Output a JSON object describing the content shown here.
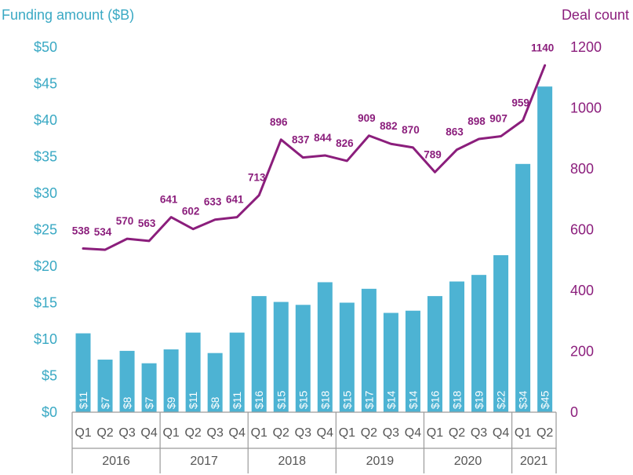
{
  "chart_data": {
    "type": "bar+line",
    "left_axis_title": "Funding amount ($B)",
    "right_axis_title": "Deal count",
    "left_ticks": [
      "$0",
      "$5",
      "$10",
      "$15",
      "$20",
      "$25",
      "$30",
      "$35",
      "$40",
      "$45",
      "$50"
    ],
    "right_ticks": [
      "0",
      "200",
      "400",
      "600",
      "800",
      "1000",
      "1200"
    ],
    "left_ylim": [
      0,
      50
    ],
    "right_ylim": [
      0,
      1200
    ],
    "quarters": [
      "Q1",
      "Q2",
      "Q3",
      "Q4",
      "Q1",
      "Q2",
      "Q3",
      "Q4",
      "Q1",
      "Q2",
      "Q3",
      "Q4",
      "Q1",
      "Q2",
      "Q3",
      "Q4",
      "Q1",
      "Q2",
      "Q3",
      "Q4",
      "Q1",
      "Q2"
    ],
    "years": [
      {
        "label": "2016",
        "count": 4
      },
      {
        "label": "2017",
        "count": 4
      },
      {
        "label": "2018",
        "count": 4
      },
      {
        "label": "2019",
        "count": 4
      },
      {
        "label": "2020",
        "count": 4
      },
      {
        "label": "2021",
        "count": 2
      }
    ],
    "funding": {
      "values": [
        10.8,
        7.2,
        8.4,
        6.7,
        8.6,
        10.9,
        8.1,
        10.9,
        15.9,
        15.1,
        14.7,
        17.8,
        15.0,
        16.9,
        13.6,
        13.9,
        15.9,
        17.9,
        18.8,
        21.5,
        34.0,
        44.6
      ],
      "labels": [
        "$11",
        "$7",
        "$8",
        "$7",
        "$9",
        "$11",
        "$8",
        "$11",
        "$16",
        "$15",
        "$15",
        "$18",
        "$15",
        "$17",
        "$14",
        "$14",
        "$16",
        "$18",
        "$19",
        "$22",
        "$34",
        "$45"
      ]
    },
    "deals": {
      "values": [
        538,
        534,
        570,
        563,
        641,
        602,
        633,
        641,
        713,
        896,
        837,
        844,
        826,
        909,
        882,
        870,
        789,
        863,
        898,
        907,
        959,
        1140
      ],
      "labels": [
        "538",
        "534",
        "570",
        "563",
        "641",
        "602",
        "633",
        "641",
        "713",
        "896",
        "837",
        "844",
        "826",
        "909",
        "882",
        "870",
        "789",
        "863",
        "898",
        "907",
        "959",
        "1140"
      ]
    },
    "colors": {
      "bar": "#4db3d3",
      "line": "#8b1e7c",
      "left_axis": "#3aa9c4",
      "right_axis": "#8b1e7c",
      "frame": "#9a9a9a"
    }
  }
}
